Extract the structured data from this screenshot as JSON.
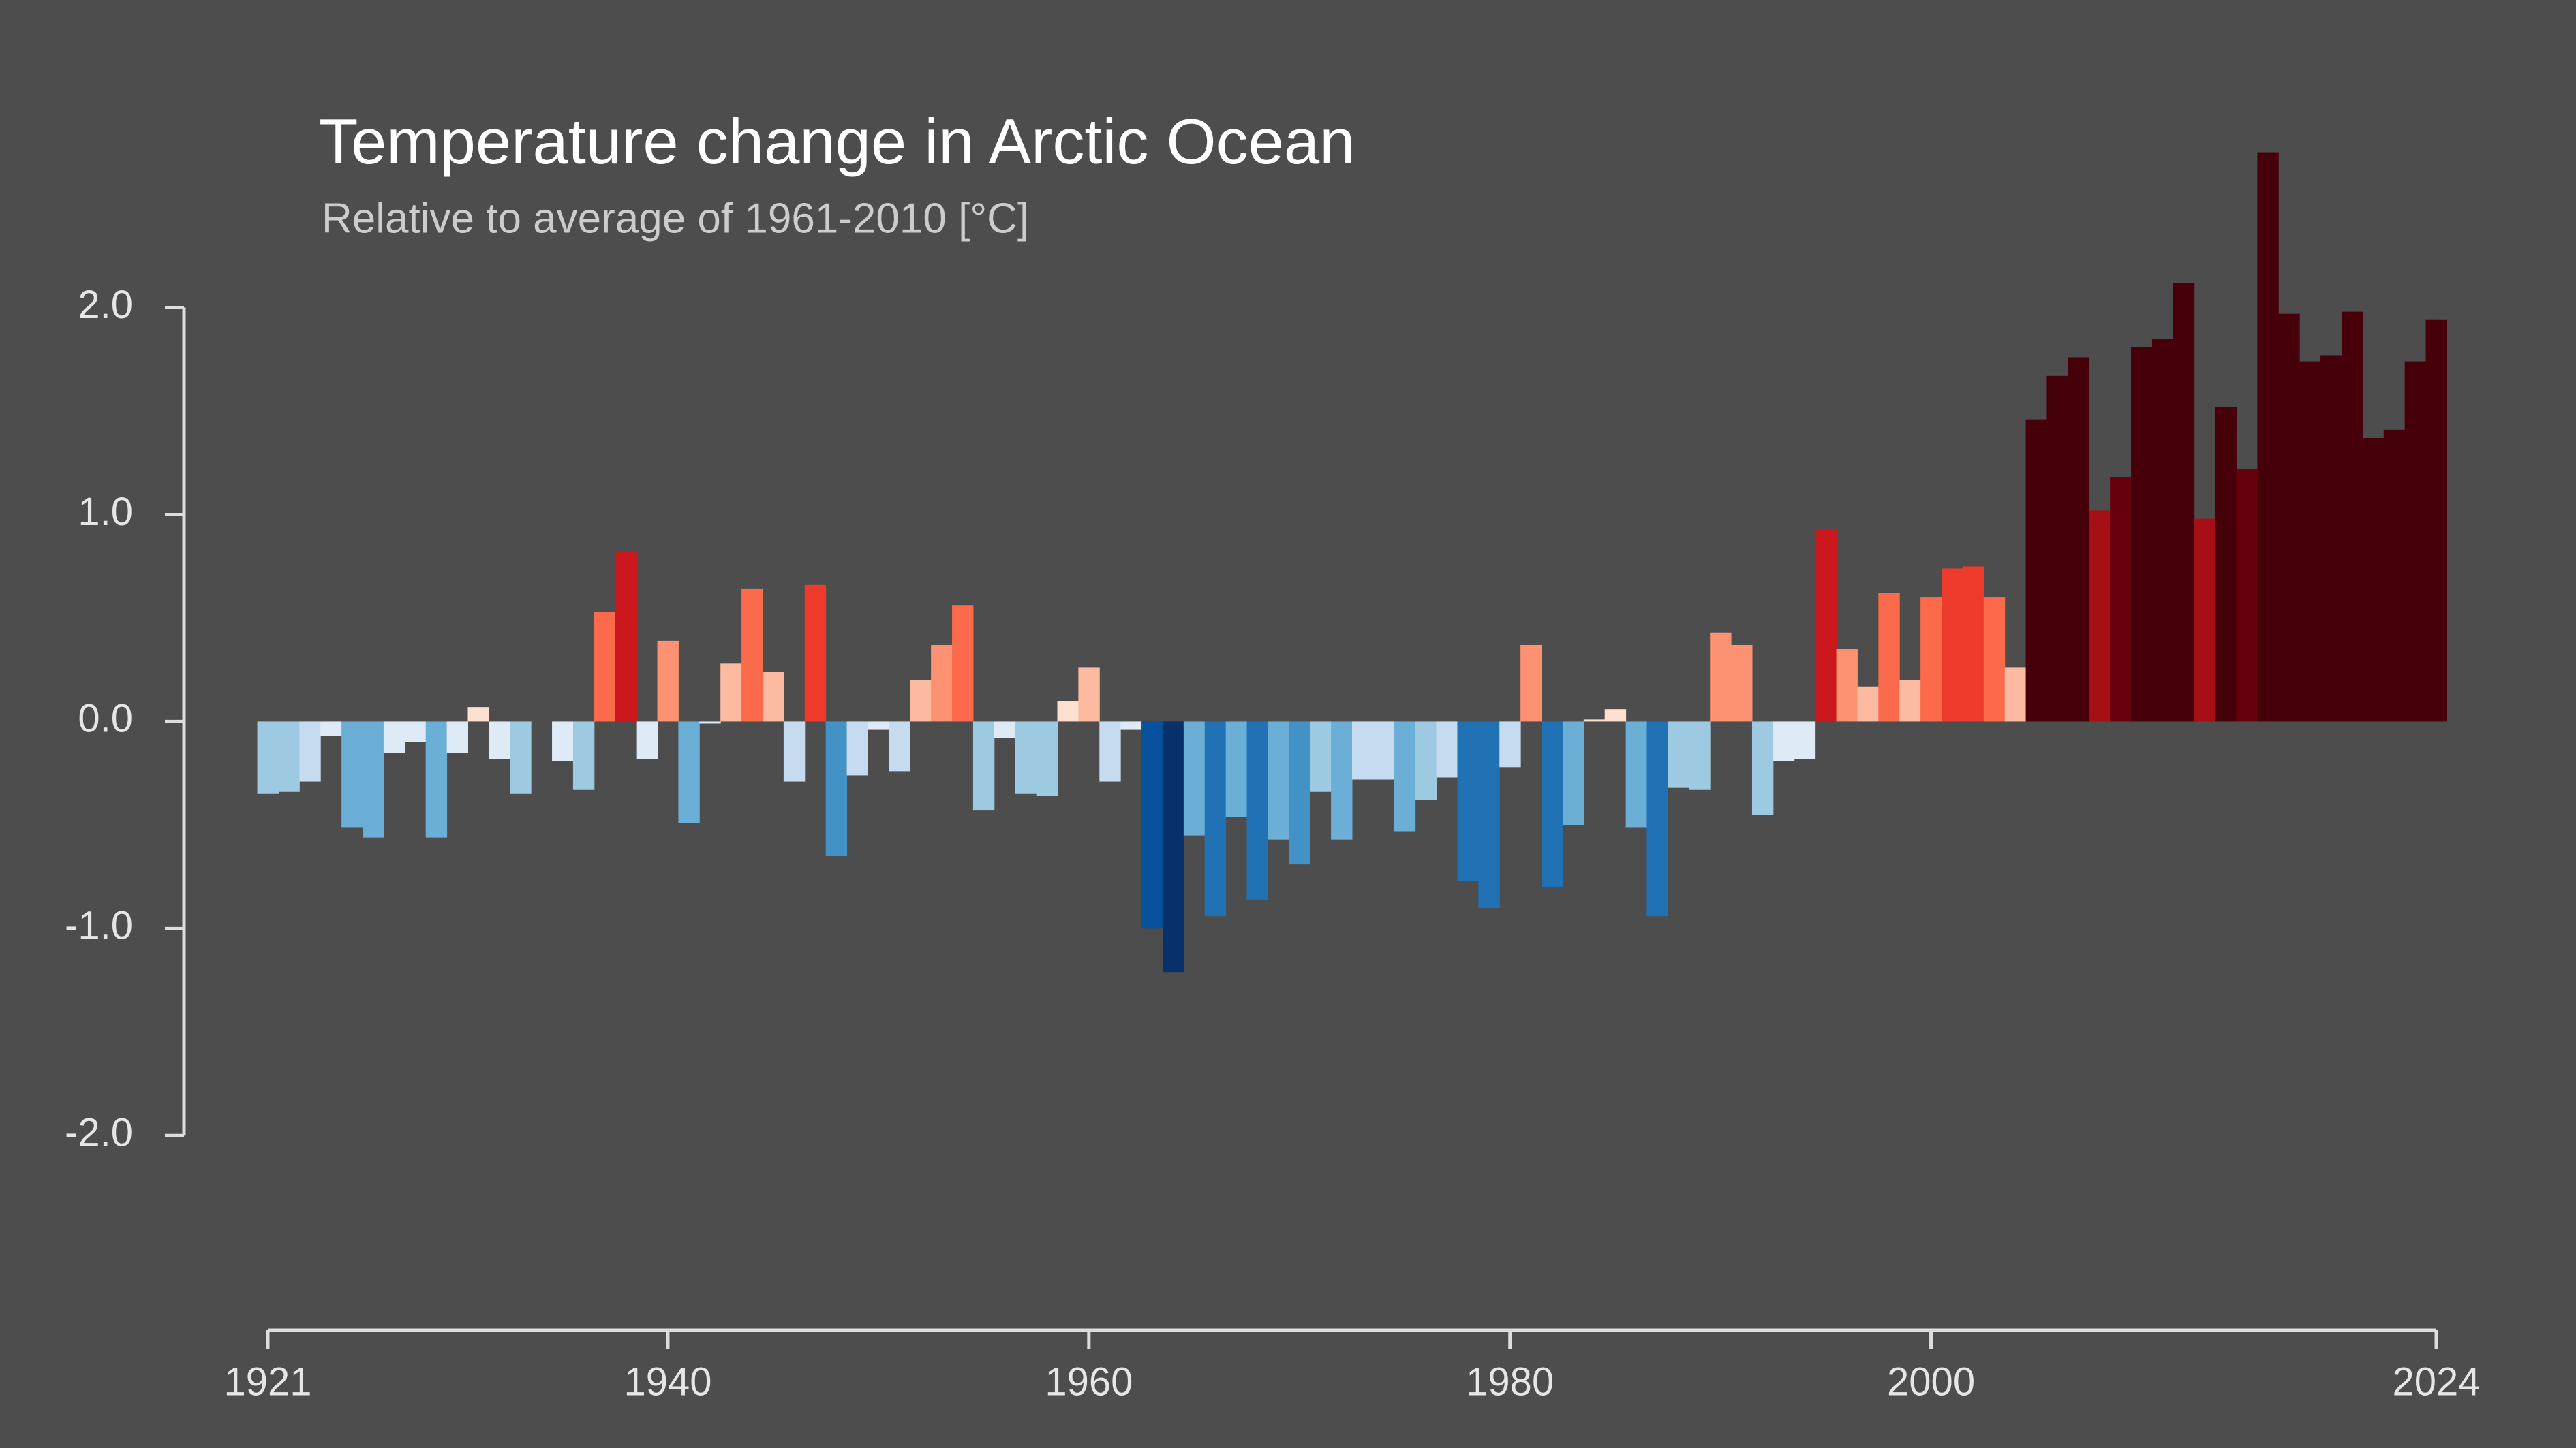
{
  "chart_data": {
    "type": "bar",
    "title": "Temperature change in Arctic Ocean",
    "subtitle": "Relative to average of 1961-2010  [°C]",
    "x": [
      1921,
      1922,
      1923,
      1924,
      1925,
      1926,
      1927,
      1928,
      1929,
      1930,
      1931,
      1932,
      1933,
      1934,
      1935,
      1936,
      1937,
      1938,
      1939,
      1940,
      1941,
      1942,
      1943,
      1944,
      1945,
      1946,
      1947,
      1948,
      1949,
      1950,
      1951,
      1952,
      1953,
      1954,
      1955,
      1956,
      1957,
      1958,
      1959,
      1960,
      1961,
      1962,
      1963,
      1964,
      1965,
      1966,
      1967,
      1968,
      1969,
      1970,
      1971,
      1972,
      1973,
      1974,
      1975,
      1976,
      1977,
      1978,
      1979,
      1980,
      1981,
      1982,
      1983,
      1984,
      1985,
      1986,
      1987,
      1988,
      1989,
      1990,
      1991,
      1992,
      1993,
      1994,
      1995,
      1996,
      1997,
      1998,
      1999,
      2000,
      2001,
      2002,
      2003,
      2004,
      2005,
      2006,
      2007,
      2008,
      2009,
      2010,
      2011,
      2012,
      2013,
      2014,
      2015,
      2016,
      2017,
      2018,
      2019,
      2020,
      2021,
      2022,
      2023,
      2024
    ],
    "values": [
      -0.35,
      -0.34,
      -0.29,
      -0.07,
      -0.51,
      -0.56,
      -0.15,
      -0.1,
      -0.56,
      -0.15,
      0.07,
      -0.18,
      -0.35,
      0.0,
      -0.19,
      -0.33,
      0.53,
      0.82,
      -0.18,
      0.39,
      -0.49,
      -0.01,
      0.28,
      0.64,
      0.24,
      -0.29,
      0.66,
      -0.65,
      -0.26,
      -0.04,
      -0.24,
      0.2,
      0.37,
      0.56,
      -0.43,
      -0.08,
      -0.35,
      -0.36,
      0.1,
      0.26,
      -0.29,
      -0.04,
      -1.0,
      -1.21,
      -0.55,
      -0.94,
      -0.46,
      -0.86,
      -0.57,
      -0.69,
      -0.34,
      -0.57,
      -0.28,
      -0.28,
      -0.53,
      -0.38,
      -0.27,
      -0.77,
      -0.9,
      -0.22,
      0.37,
      -0.8,
      -0.5,
      0.01,
      0.06,
      -0.51,
      -0.94,
      -0.32,
      -0.33,
      0.43,
      0.37,
      -0.45,
      -0.19,
      -0.18,
      0.93,
      0.35,
      0.17,
      0.62,
      0.2,
      0.6,
      0.74,
      0.75,
      0.6,
      0.26,
      1.46,
      1.67,
      1.76,
      1.02,
      1.18,
      1.81,
      1.85,
      2.12,
      0.98,
      1.52,
      1.22,
      2.75,
      1.97,
      1.74,
      1.77,
      1.98,
      1.37,
      1.41,
      1.74,
      1.94
    ],
    "colors": [
      "#9ecae1",
      "#9ecae1",
      "#c6dbef",
      "#deebf7",
      "#6baed6",
      "#6baed6",
      "#deebf7",
      "#deebf7",
      "#6baed6",
      "#deebf7",
      "#fee0d2",
      "#deebf7",
      "#9ecae1",
      "#deebf7",
      "#deebf7",
      "#9ecae1",
      "#fb6a4a",
      "#cb181d",
      "#deebf7",
      "#fc9272",
      "#6baed6",
      "#deebf7",
      "#fcbba1",
      "#fb6a4a",
      "#fcbba1",
      "#c6dbef",
      "#ef3b2c",
      "#4292c6",
      "#c6dbef",
      "#deebf7",
      "#c6dbef",
      "#fcbba1",
      "#fc9272",
      "#fb6a4a",
      "#9ecae1",
      "#deebf7",
      "#9ecae1",
      "#9ecae1",
      "#fee0d2",
      "#fcbba1",
      "#c6dbef",
      "#deebf7",
      "#08519c",
      "#08306b",
      "#6baed6",
      "#2171b5",
      "#6baed6",
      "#2171b5",
      "#6baed6",
      "#4292c6",
      "#9ecae1",
      "#6baed6",
      "#c6dbef",
      "#c6dbef",
      "#6baed6",
      "#9ecae1",
      "#c6dbef",
      "#2171b5",
      "#2171b5",
      "#c6dbef",
      "#fc9272",
      "#2171b5",
      "#6baed6",
      "#fee0d2",
      "#fee0d2",
      "#6baed6",
      "#2171b5",
      "#9ecae1",
      "#9ecae1",
      "#fc9272",
      "#fc9272",
      "#9ecae1",
      "#deebf7",
      "#deebf7",
      "#cb181d",
      "#fc9272",
      "#fcbba1",
      "#fb6a4a",
      "#fcbba1",
      "#fb6a4a",
      "#ef3b2c",
      "#ef3b2c",
      "#fb6a4a",
      "#fcbba1",
      "#46000a",
      "#46000a",
      "#46000a",
      "#a50f15",
      "#67000d",
      "#46000a",
      "#46000a",
      "#46000a",
      "#a50f15",
      "#46000a",
      "#67000d",
      "#46000a",
      "#46000a",
      "#46000a",
      "#46000a",
      "#46000a",
      "#46000a",
      "#46000a",
      "#46000a",
      "#46000a"
    ],
    "xlim": [
      1921,
      2024
    ],
    "xticks": [
      1921,
      1940,
      1960,
      1980,
      2000,
      2024
    ],
    "ylim": [
      -2.94,
      2.9
    ],
    "yticks": [
      {
        "value": -2,
        "label": "-2.0"
      },
      {
        "value": -1,
        "label": "-1.0"
      },
      {
        "value": 0,
        "label": "0.0"
      },
      {
        "value": 1,
        "label": "1.0"
      },
      {
        "value": 2,
        "label": "2.0"
      }
    ]
  }
}
